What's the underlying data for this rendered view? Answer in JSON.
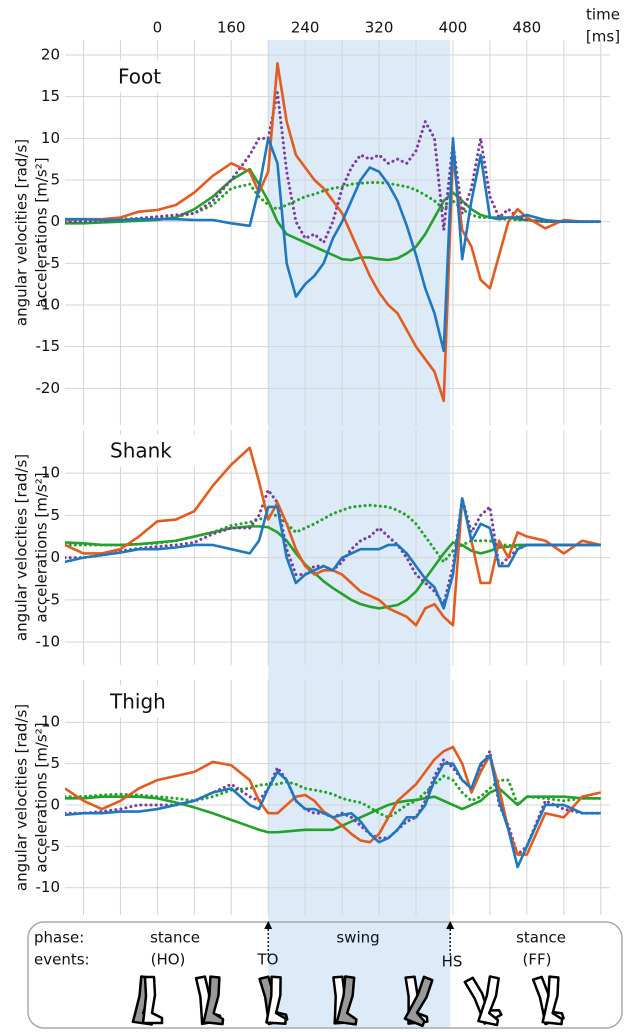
{
  "chart_data": [
    {
      "type": "line",
      "title": "Foot",
      "xlabel": [
        "time",
        "[ms]"
      ],
      "ylabel": [
        "angular velocities [rad/s]",
        "accelerations [m/s²]"
      ],
      "xlim": [
        -20,
        570
      ],
      "xticks": [
        {
          "value": 80,
          "label": "0"
        },
        160,
        240,
        320,
        400,
        480
      ],
      "xgrid": [
        0,
        40,
        80,
        120,
        160,
        200,
        240,
        280,
        320,
        360,
        400,
        440,
        480,
        520,
        560
      ],
      "shade": [
        200,
        397
      ],
      "shade_color": "#dcebf7",
      "ylim": [
        -24.4,
        21.8
      ],
      "yticks": [
        -20,
        -15,
        -10,
        -5,
        0,
        5,
        10,
        15,
        20
      ],
      "x": [
        -20,
        0,
        20,
        40,
        60,
        80,
        100,
        120,
        140,
        160,
        180,
        190,
        200,
        210,
        220,
        230,
        240,
        250,
        260,
        270,
        280,
        290,
        300,
        310,
        320,
        330,
        340,
        350,
        360,
        370,
        380,
        390,
        400,
        410,
        420,
        430,
        440,
        450,
        460,
        470,
        480,
        500,
        520,
        540,
        560
      ],
      "series": [
        {
          "color": "#22a22a",
          "dash": "dotted",
          "values": [
            0.1,
            0.1,
            0.2,
            0.3,
            0.4,
            0.5,
            0.6,
            1,
            2,
            4,
            4.5,
            3,
            2,
            1.5,
            2,
            2.5,
            3,
            3.3,
            3.7,
            4,
            4.2,
            4.5,
            4.6,
            4.7,
            4.7,
            4.6,
            4.4,
            4.2,
            3.8,
            3.2,
            2.5,
            1.5,
            2.5,
            1.5,
            0.8,
            0.5,
            0.5,
            0.3,
            0.3,
            0.2,
            0.2,
            0,
            0,
            0,
            0
          ]
        },
        {
          "color": "#22a22a",
          "values": [
            -0.2,
            -0.2,
            -0.1,
            0,
            0.1,
            0.2,
            0.5,
            1.5,
            3,
            5,
            6.3,
            4.5,
            2.5,
            0,
            -1.5,
            -2,
            -2.5,
            -3,
            -3.5,
            -4,
            -4.5,
            -4.6,
            -4.3,
            -4.3,
            -4.5,
            -4.6,
            -4.4,
            -3.8,
            -3,
            -1.5,
            0.5,
            2.5,
            3.5,
            2.5,
            1.5,
            0.8,
            0.5,
            0.5,
            0.5,
            0.3,
            0.2,
            0,
            0,
            0,
            0
          ]
        },
        {
          "color": "#7a3c9e",
          "dash": "dotted",
          "values": [
            0,
            0,
            0.1,
            0.2,
            0.4,
            0.6,
            0.8,
            1,
            2.5,
            5,
            8,
            10,
            10,
            15.5,
            6,
            0,
            -2,
            -1.5,
            -2.5,
            0,
            4,
            6.5,
            8,
            7.5,
            8,
            7,
            7.5,
            7,
            8.5,
            12,
            10,
            -1,
            9.5,
            1,
            4,
            10,
            3,
            0.5,
            1.5,
            0.5,
            0.2,
            0,
            0,
            0,
            0
          ]
        },
        {
          "color": "#e35b1f",
          "values": [
            0.2,
            0.3,
            0.3,
            0.5,
            1.2,
            1.4,
            2,
            3.5,
            5.5,
            7,
            6,
            3.5,
            6,
            19,
            12,
            8,
            6.5,
            5,
            4,
            2.5,
            1,
            -1.5,
            -4,
            -6.5,
            -8.5,
            -10,
            -11,
            -13,
            -15,
            -16.5,
            -18,
            -21.5,
            8,
            -1,
            -3,
            -7,
            -8,
            -4,
            0,
            1.5,
            0.5,
            -0.8,
            0.2,
            0,
            0
          ]
        },
        {
          "color": "#1f78bf",
          "values": [
            0.3,
            0.3,
            0.2,
            0.2,
            0.3,
            0.3,
            0.3,
            0.2,
            0.2,
            -0.2,
            -0.5,
            4,
            10,
            7,
            -5,
            -9,
            -7.5,
            -6.5,
            -5,
            -2,
            0,
            2.5,
            5,
            6.5,
            6,
            4.5,
            2.5,
            -0.5,
            -4,
            -8,
            -11,
            -15.5,
            10,
            -4.5,
            2.5,
            8,
            0.5,
            0.3,
            0.5,
            0.5,
            0.8,
            0.2,
            0,
            0,
            0
          ]
        }
      ]
    },
    {
      "type": "line",
      "title": "Shank",
      "ylabel": [
        "angular velocities [rad/s]",
        "accelerations [m/s²]"
      ],
      "xlim": [
        -20,
        570
      ],
      "xgrid": [
        0,
        40,
        80,
        120,
        160,
        200,
        240,
        280,
        320,
        360,
        400,
        440,
        480,
        520,
        560
      ],
      "ylim": [
        -12.7,
        15.1
      ],
      "yticks": [
        -10,
        -5,
        0,
        5,
        10
      ],
      "x": [
        -20,
        0,
        20,
        40,
        60,
        80,
        100,
        120,
        140,
        160,
        180,
        190,
        200,
        210,
        220,
        230,
        240,
        250,
        260,
        270,
        280,
        290,
        300,
        310,
        320,
        330,
        340,
        350,
        360,
        370,
        380,
        390,
        400,
        410,
        420,
        430,
        440,
        450,
        460,
        470,
        480,
        500,
        520,
        540,
        560
      ],
      "series": [
        {
          "color": "#22a22a",
          "dash": "dotted",
          "values": [
            1.5,
            1.5,
            1.5,
            1.5,
            1.6,
            1.7,
            2,
            2.5,
            3,
            3.8,
            4.2,
            4.5,
            5,
            5,
            4,
            3,
            3.5,
            4,
            4.6,
            5.2,
            5.6,
            6,
            6.1,
            6.2,
            6.1,
            6,
            5.6,
            5,
            4,
            2.5,
            1,
            -0.5,
            0.8,
            1.5,
            2,
            2,
            2,
            1.5,
            1.5,
            1.2,
            1.5,
            1.5,
            1.5,
            1.5,
            1.5
          ]
        },
        {
          "color": "#22a22a",
          "values": [
            1.8,
            1.7,
            1.5,
            1.5,
            1.6,
            1.8,
            2,
            2.5,
            3,
            3.5,
            3.7,
            3.7,
            3.6,
            3,
            2,
            0.5,
            -0.8,
            -1.8,
            -2.8,
            -3.6,
            -4.3,
            -5,
            -5.5,
            -5.8,
            -6,
            -5.8,
            -5.6,
            -5,
            -4,
            -2.5,
            -1,
            0.5,
            1.8,
            1.5,
            0.8,
            0.5,
            0.8,
            1.2,
            1.3,
            1.5,
            1.5,
            1.5,
            1.5,
            1.5,
            1.5
          ]
        },
        {
          "color": "#7a3c9e",
          "dash": "dotted",
          "values": [
            0,
            0,
            0.3,
            0.8,
            1.1,
            1.3,
            1.5,
            1.8,
            2.8,
            3.5,
            3.5,
            5,
            8,
            6.5,
            1,
            -2,
            -2,
            -1,
            -1,
            -1.5,
            -0.5,
            1,
            2,
            2.5,
            3.5,
            2.5,
            1.5,
            0,
            -2,
            -3,
            -4,
            -5.5,
            -1,
            7,
            3,
            5,
            6,
            -1,
            0,
            1,
            1.5,
            1.5,
            1.5,
            1.5,
            1.5
          ]
        },
        {
          "color": "#e35b1f",
          "values": [
            1.5,
            0.5,
            0.5,
            1,
            2.5,
            4.3,
            4.5,
            5.5,
            8.5,
            11,
            13,
            9,
            4.5,
            6.5,
            4,
            1,
            -1,
            -2,
            -1.5,
            -1.5,
            -2,
            -3,
            -4,
            -4.5,
            -5,
            -6,
            -6.5,
            -7,
            -8,
            -6,
            -5.5,
            -7,
            -8,
            7,
            2,
            -3,
            -3,
            2,
            0,
            3,
            2.5,
            2,
            0.5,
            2,
            1.5
          ]
        },
        {
          "color": "#1f78bf",
          "values": [
            -0.5,
            0,
            0.3,
            0.6,
            1,
            1,
            1.2,
            1.5,
            1.5,
            1,
            0.5,
            2,
            6,
            6,
            0,
            -3,
            -2,
            -1.5,
            -1,
            -1.5,
            0,
            0.5,
            1,
            1,
            1,
            1.5,
            1.5,
            0.5,
            -1,
            -2.5,
            -3.5,
            -6,
            -2,
            7,
            2,
            4,
            3.5,
            -1,
            -1,
            1,
            1.5,
            1.5,
            1.5,
            1.5,
            1.5
          ]
        }
      ]
    },
    {
      "type": "line",
      "title": "Thigh",
      "ylabel": [
        "angular velocities [rad/s]",
        "accelerations [m/s²]"
      ],
      "xlim": [
        -20,
        570
      ],
      "xgrid": [
        0,
        40,
        80,
        120,
        160,
        200,
        240,
        280,
        320,
        360,
        400,
        440,
        480,
        520,
        560
      ],
      "ylim": [
        -13.3,
        15.1
      ],
      "yticks": [
        -10,
        -5,
        0,
        5,
        10
      ],
      "x": [
        -20,
        0,
        20,
        40,
        60,
        80,
        100,
        120,
        140,
        160,
        180,
        190,
        200,
        210,
        220,
        230,
        240,
        250,
        260,
        270,
        280,
        290,
        300,
        310,
        320,
        330,
        340,
        350,
        360,
        370,
        380,
        390,
        400,
        410,
        420,
        430,
        440,
        450,
        460,
        470,
        480,
        500,
        520,
        540,
        560
      ],
      "series": [
        {
          "color": "#22a22a",
          "dash": "dotted",
          "values": [
            1,
            1,
            1.2,
            1.3,
            1.2,
            1,
            0.8,
            0.5,
            1,
            1.8,
            2,
            2.4,
            2.5,
            2.5,
            2.8,
            2.5,
            2,
            1.8,
            1.6,
            1.3,
            0.8,
            0.5,
            0.3,
            -0.3,
            -1,
            -1.5,
            -0.8,
            0,
            0.5,
            1.5,
            2.5,
            3.5,
            3,
            1.5,
            0.5,
            1,
            2,
            3,
            3,
            0,
            1,
            0.8,
            0.5,
            0.8,
            0.8
          ]
        },
        {
          "color": "#22a22a",
          "values": [
            0.8,
            0.8,
            1,
            1,
            1,
            0.8,
            0.3,
            -0.3,
            -1,
            -1.8,
            -2.6,
            -3,
            -3.3,
            -3.3,
            -3.2,
            -3.1,
            -3,
            -3,
            -3,
            -3,
            -2.5,
            -2,
            -1.5,
            -1,
            -0.5,
            0,
            0.3,
            0.5,
            0.6,
            0.8,
            1,
            0.5,
            0,
            -0.5,
            0,
            0.5,
            1.5,
            2,
            1,
            0,
            1,
            1,
            1,
            0.8,
            0.8
          ]
        },
        {
          "color": "#7a3c9e",
          "dash": "dotted",
          "values": [
            -1,
            -1,
            -0.8,
            -0.5,
            0,
            0,
            0,
            0.5,
            1.5,
            2.5,
            1,
            0.5,
            2,
            4.5,
            3,
            0.5,
            -0.5,
            -1,
            -1,
            -1.5,
            -1,
            -1.5,
            -2.5,
            -3.5,
            -4,
            -4,
            -3,
            -2,
            -1.5,
            0.5,
            3.5,
            5.5,
            4.5,
            3,
            2,
            4.5,
            6.5,
            0,
            -2.5,
            -6,
            -5,
            0.5,
            -0.5,
            -1,
            -1
          ]
        },
        {
          "color": "#e35b1f",
          "values": [
            2,
            0.5,
            -0.5,
            0.5,
            2,
            3,
            3.5,
            4,
            5.2,
            4.8,
            3,
            0.5,
            -1,
            -1,
            0,
            1,
            1.2,
            0.5,
            -0.8,
            -1.5,
            -2.5,
            -3.5,
            -4.3,
            -4.5,
            -3.5,
            -1.5,
            0.5,
            1.5,
            2.5,
            4,
            5.5,
            6.5,
            7,
            5,
            1.5,
            4,
            6,
            2,
            -3,
            -6,
            -6,
            -1,
            -1.5,
            1,
            1.5
          ]
        },
        {
          "color": "#1f78bf",
          "values": [
            -1.2,
            -1,
            -1,
            -0.8,
            -0.8,
            -0.5,
            0,
            0.5,
            1.5,
            2,
            0,
            -0.5,
            2,
            4,
            3,
            0.5,
            -0.5,
            -0.5,
            -1,
            -1.5,
            -1.2,
            -1,
            -2,
            -3.5,
            -4.5,
            -4,
            -3,
            -1.5,
            -1.5,
            0,
            3,
            5,
            5,
            3,
            2,
            5,
            6,
            0.5,
            -3,
            -7.5,
            -5,
            0,
            0,
            -1,
            -1
          ]
        }
      ]
    }
  ],
  "gait": {
    "phase_label": "phase:",
    "phases": [
      "stance",
      "swing",
      "stance"
    ],
    "events_label": "events:",
    "events": [
      "(HO)",
      "TO",
      "HS",
      "(FF)"
    ]
  }
}
